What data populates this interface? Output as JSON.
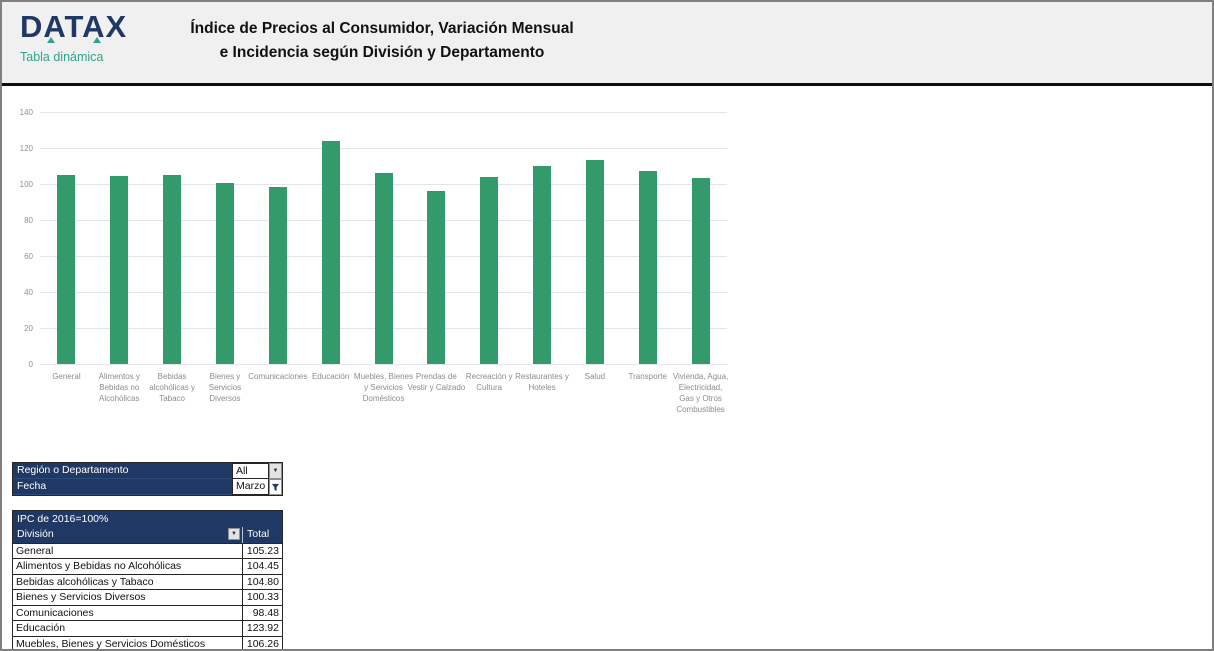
{
  "header": {
    "brand": "DATAX",
    "brand_subtitle": "Tabla dinámica",
    "title_line1": "Índice de Precios al Consumidor, Variación Mensual",
    "title_line2": "e Incidencia según División y Departamento"
  },
  "chart_data": {
    "type": "bar",
    "title": "",
    "xlabel": "",
    "ylabel": "",
    "ylim": [
      0,
      140
    ],
    "yticks": [
      0,
      20,
      40,
      60,
      80,
      100,
      120,
      140
    ],
    "grid": true,
    "legend": "none",
    "bar_color": "#339b6b",
    "categories": [
      "General",
      "Alimentos y Bebidas no Alcohólicas",
      "Bebidas alcohólicas y Tabaco",
      "Bienes y Servicios Diversos",
      "Comunicaciones",
      "Educación",
      "Muebles, Bienes y Servicios Domésticos",
      "Prendas de Vestir y Calzado",
      "Recreación y Cultura",
      "Restaurantes y Hoteles",
      "Salud",
      "Transporte",
      "Vivienda, Agua, Electricidad, Gas y Otros Combustibles"
    ],
    "category_label_lines": [
      [
        "General"
      ],
      [
        "Alimentos y",
        "Bebidas no",
        "Alcohólicas"
      ],
      [
        "Bebidas",
        "alcohólicas y",
        "Tabaco"
      ],
      [
        "Bienes y",
        "Servicios",
        "Diversos"
      ],
      [
        "Comunicaciones"
      ],
      [
        "Educación"
      ],
      [
        "Muebles, Bienes",
        "y Servicios",
        "Domésticos"
      ],
      [
        "Prendas de",
        "Vestir y Calzado"
      ],
      [
        "Recreación y",
        "Cultura"
      ],
      [
        "Restaurantes y",
        "Hoteles"
      ],
      [
        "Salud"
      ],
      [
        "Transporte"
      ],
      [
        "Vivienda, Agua,",
        "Electricidad,",
        "Gas y Otros",
        "Combustibles"
      ]
    ],
    "values": [
      105.23,
      104.45,
      104.8,
      100.33,
      98.48,
      123.92,
      106.26,
      96.3,
      104.0,
      110.0,
      113.4,
      107.3,
      103.4
    ]
  },
  "filters": {
    "region_label": "Región o Departamento",
    "region_value": "All",
    "fecha_label": "Fecha",
    "fecha_value": "Marzo"
  },
  "pivot_table": {
    "title": "IPC de 2016=100%",
    "col1_header": "División",
    "col2_header": "Total",
    "rows": [
      {
        "division": "General",
        "total": "105.23"
      },
      {
        "division": "Alimentos y Bebidas no Alcohólicas",
        "total": "104.45"
      },
      {
        "division": "Bebidas alcohólicas y Tabaco",
        "total": "104.80"
      },
      {
        "division": "Bienes y Servicios Diversos",
        "total": "100.33"
      },
      {
        "division": "Comunicaciones",
        "total": "98.48"
      },
      {
        "division": "Educación",
        "total": "123.92"
      },
      {
        "division": "Muebles, Bienes y Servicios Domésticos",
        "total": "106.26"
      }
    ]
  },
  "colors": {
    "navy": "#1f3864",
    "teal": "#31a28b",
    "bar_green": "#339b6b",
    "header_band": "#f0f0f0"
  }
}
